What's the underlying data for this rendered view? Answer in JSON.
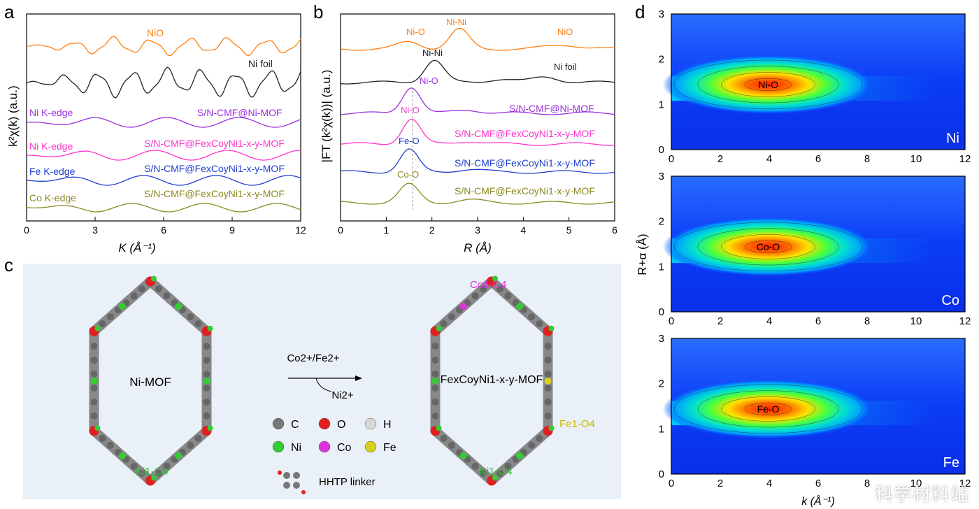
{
  "panels": {
    "a": "a",
    "b": "b",
    "c": "c",
    "d": "d"
  },
  "panel_a": {
    "xlabel": "K (Å⁻¹)",
    "ylabel": "k²χ(k) (a.u.)",
    "xticks": [
      "0",
      "3",
      "6",
      "9",
      "12"
    ],
    "labels": {
      "nio": "NiO",
      "nifoil": "Ni foil",
      "ni_edge_1": "Ni K-edge",
      "mof1": "S/N-CMF@Ni-MOF",
      "ni_edge_2": "Ni K-edge",
      "mof2": "S/N-CMF@FexCoyNi1-x-y-MOF",
      "fe_edge": "Fe K-edge",
      "mof3": "S/N-CMF@FexCoyNi1-x-y-MOF",
      "co_edge": "Co K-edge",
      "mof4": "S/N-CMF@FexCoyNi1-x-y-MOF"
    },
    "colors": {
      "nio": "#ff7f0e",
      "nifoil": "#222222",
      "ni": "#9b30e0",
      "nimix": "#ff33cc",
      "fe": "#1f3fd0",
      "co": "#8a8a1f"
    }
  },
  "panel_b": {
    "xlabel": "R (Å)",
    "ylabel": "|FT (k²χ(k))| (a.u.)",
    "xticks": [
      "0",
      "1",
      "2",
      "3",
      "4",
      "5",
      "6"
    ],
    "labels": {
      "nio_o": "Ni-O",
      "nio_ni": "Ni-Ni",
      "nio": "NiO",
      "foil_nini": "Ni-Ni",
      "foil": "Ni foil",
      "nio2": "Ni-O",
      "mof1": "S/N-CMF@Ni-MOF",
      "nio3": "Ni-O",
      "mof2": "S/N-CMF@FexCoyNi1-x-y-MOF",
      "feo": "Fe-O",
      "mof3": "S/N-CMF@FexCoyNi1-x-y-MOF",
      "coo": "Co-O",
      "mof4": "S/N-CMF@FexCoyNi1-x-y-MOF"
    }
  },
  "panel_c": {
    "left_title": "Ni-MOF",
    "left_site": "Ni1-O4",
    "reagent": "Co2+/Fe2+",
    "product_ion": "Ni2+",
    "right_title": "FexCoyNi1-x-y-MOF",
    "co_site": "Co1-O4",
    "fe_site": "Fe1-O4",
    "ni_site": "Ni1-O4",
    "legend": [
      {
        "label": "C",
        "color": "#777777"
      },
      {
        "label": "O",
        "color": "#e02020"
      },
      {
        "label": "H",
        "color": "#d8d8d8"
      },
      {
        "label": "Ni",
        "color": "#33cc33"
      },
      {
        "label": "Co",
        "color": "#dd33dd"
      },
      {
        "label": "Fe",
        "color": "#d8d020"
      }
    ],
    "linker": "HHTP linker"
  },
  "panel_d": {
    "ylabel": "R+α (Å)",
    "xlabel": "k (Å⁻¹)",
    "xticks": [
      "0",
      "2",
      "4",
      "6",
      "8",
      "10",
      "12"
    ],
    "yticks": [
      "0",
      "1",
      "2",
      "3"
    ],
    "maps": [
      {
        "element": "Ni",
        "bond": "Ni-O"
      },
      {
        "element": "Co",
        "bond": "Co-O"
      },
      {
        "element": "Fe",
        "bond": "Fe-O"
      }
    ]
  },
  "watermark": "科学材料站"
}
